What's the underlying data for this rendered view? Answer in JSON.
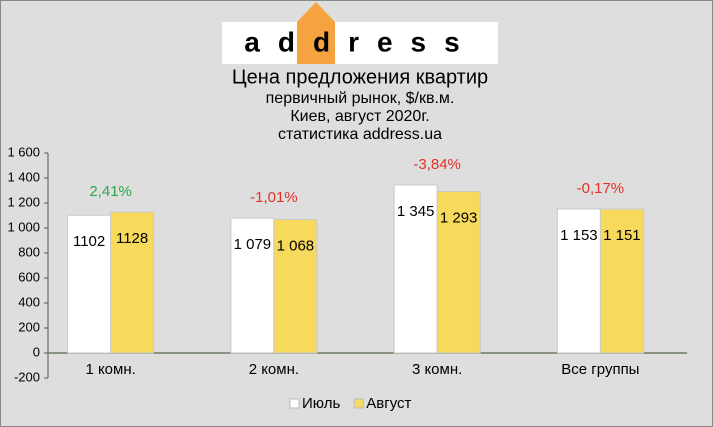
{
  "chart_data": {
    "type": "bar",
    "logo": "address",
    "title": "Цена предложения квартир",
    "subtitle": [
      "первичный рынок, $/кв.м.",
      "Киев, август 2020г.",
      "статистика address.ua"
    ],
    "categories": [
      "1 комн.",
      "2 комн.",
      "3 комн.",
      "Все группы"
    ],
    "series": [
      {
        "name": "Июль",
        "color": "#ffffff",
        "values": [
          1102,
          1079,
          1345,
          1153
        ],
        "value_labels": [
          "1102",
          "1 079",
          "1 345",
          "1 153"
        ]
      },
      {
        "name": "Август",
        "color": "#f7d95c",
        "values": [
          1128,
          1068,
          1293,
          1151
        ],
        "value_labels": [
          "1128",
          "1 068",
          "1 293",
          "1 151"
        ]
      }
    ],
    "annotations": [
      {
        "text": "2,41%",
        "color": "#2aa84a"
      },
      {
        "text": "-1,01%",
        "color": "#e53027"
      },
      {
        "text": "-3,84%",
        "color": "#e53027"
      },
      {
        "text": "-0,17%",
        "color": "#e53027"
      }
    ],
    "ylim": [
      -200,
      1600
    ],
    "yticks": [
      -200,
      0,
      200,
      400,
      600,
      800,
      {
        "value": 1000,
        "label": "1 000"
      },
      {
        "value": 1200,
        "label": "1 200"
      },
      {
        "value": 1400,
        "label": "1 400"
      },
      {
        "value": 1600,
        "label": "1 600"
      }
    ],
    "legend": "bottom"
  }
}
